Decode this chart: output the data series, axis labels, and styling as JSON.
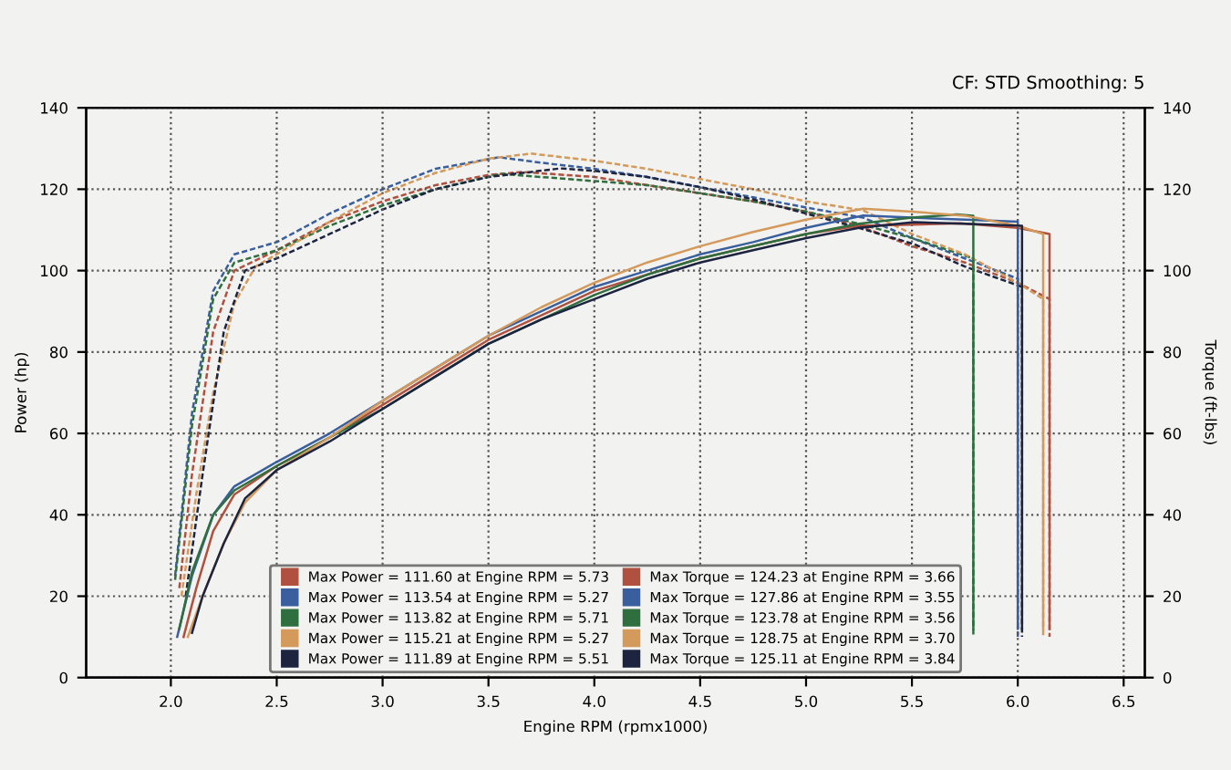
{
  "chart_data": {
    "type": "line",
    "xlabel": "Engine RPM (rpmx1000)",
    "ylabel": "Power (hp)",
    "y2label": "Torque (ft-lbs)",
    "annotations": [
      "CF: STD Smoothing: 5"
    ],
    "xlim": [
      1.6,
      6.6
    ],
    "xticks": [
      {
        "value": 2,
        "label": "2.0"
      },
      {
        "value": 2.5,
        "label": "2.5"
      },
      {
        "value": 3,
        "label": "3.0"
      },
      {
        "value": 3.5,
        "label": "3.5"
      },
      {
        "value": 4,
        "label": "4.0"
      },
      {
        "value": 4.5,
        "label": "4.5"
      },
      {
        "value": 5,
        "label": "5.0"
      },
      {
        "value": 5.5,
        "label": "5.5"
      },
      {
        "value": 6,
        "label": "6.0"
      },
      {
        "value": 6.5,
        "label": "6.5"
      }
    ],
    "ylim": [
      0,
      140
    ],
    "yticks": [
      0,
      20,
      40,
      60,
      80,
      100,
      120,
      140
    ],
    "y2lim": [
      0,
      140
    ],
    "y2ticks": [
      0,
      20,
      40,
      60,
      80,
      100,
      120,
      140
    ],
    "grid": true,
    "legend": "bottom",
    "marker": "none",
    "series": [
      {
        "name": "Max Power = 111.60 at Engine RPM = 5.73",
        "color": "#b0503f",
        "line_style": "solid",
        "x": [
          2.06,
          2.12,
          2.2,
          2.3,
          2.5,
          2.75,
          3.0,
          3.25,
          3.5,
          3.75,
          4.0,
          4.25,
          4.5,
          4.75,
          5.0,
          5.25,
          5.5,
          5.73,
          6.0,
          6.15,
          6.15
        ],
        "values": [
          10,
          22,
          36,
          45,
          52,
          59,
          67,
          75,
          83,
          89,
          95,
          99,
          103,
          106,
          109,
          111,
          111.3,
          111.6,
          110.5,
          109,
          12
        ]
      },
      {
        "name": "Max Power = 113.54 at Engine RPM = 5.27",
        "color": "#3a5f9e",
        "line_style": "solid",
        "x": [
          2.03,
          2.1,
          2.2,
          2.3,
          2.5,
          2.75,
          3.0,
          3.25,
          3.5,
          3.75,
          4.0,
          4.25,
          4.5,
          4.75,
          5.0,
          5.27,
          5.5,
          5.75,
          6.0,
          6.0
        ],
        "values": [
          10,
          25,
          40,
          47,
          53,
          60,
          68,
          76,
          84,
          90,
          96,
          100,
          104,
          107,
          110.5,
          113.54,
          113,
          112.5,
          112,
          12
        ]
      },
      {
        "name": "Max Power = 113.82 at Engine RPM = 5.71",
        "color": "#2f6e3e",
        "line_style": "solid",
        "x": [
          2.04,
          2.1,
          2.2,
          2.3,
          2.5,
          2.75,
          3.0,
          3.25,
          3.5,
          3.75,
          4.0,
          4.25,
          4.5,
          4.75,
          5.0,
          5.25,
          5.5,
          5.71,
          5.79,
          5.79
        ],
        "values": [
          12,
          26,
          40,
          46,
          52,
          59,
          66,
          74,
          82,
          88,
          94,
          99,
          103,
          106,
          109,
          111.5,
          113,
          113.82,
          113.5,
          12
        ]
      },
      {
        "name": "Max Power = 115.21 at Engine RPM = 5.27",
        "color": "#d49a5c",
        "line_style": "solid",
        "x": [
          2.08,
          2.15,
          2.25,
          2.35,
          2.5,
          2.75,
          3.0,
          3.25,
          3.5,
          3.75,
          4.0,
          4.25,
          4.5,
          4.75,
          5.0,
          5.27,
          5.5,
          5.75,
          6.0,
          6.12,
          6.12
        ],
        "values": [
          10,
          20,
          33,
          43,
          51,
          59,
          68,
          76,
          84,
          91,
          97,
          102,
          106,
          109.5,
          112.5,
          115.21,
          114.5,
          113.5,
          111,
          109,
          12
        ]
      },
      {
        "name": "Max Power = 111.89 at Engine RPM = 5.51",
        "color": "#1c2440",
        "line_style": "solid",
        "x": [
          2.1,
          2.15,
          2.25,
          2.35,
          2.5,
          2.75,
          3.0,
          3.25,
          3.5,
          3.75,
          4.0,
          4.25,
          4.5,
          4.75,
          5.0,
          5.25,
          5.51,
          5.75,
          6.02,
          6.02
        ],
        "values": [
          11,
          20,
          33,
          44,
          51,
          58,
          66,
          74,
          82,
          88,
          93,
          98,
          102,
          105,
          108,
          110.5,
          111.89,
          111.5,
          111,
          12
        ]
      },
      {
        "name": "Max Torque = 124.23 at Engine RPM = 3.66",
        "color": "#b0503f",
        "line_style": "dashed",
        "axis": "y2",
        "x": [
          2.04,
          2.1,
          2.2,
          2.3,
          2.5,
          2.75,
          3.0,
          3.25,
          3.5,
          3.66,
          4.0,
          4.25,
          4.5,
          4.75,
          5.0,
          5.25,
          5.5,
          5.75,
          6.0,
          6.15,
          6.15
        ],
        "values": [
          22,
          50,
          85,
          100,
          105,
          112,
          117,
          121,
          123.5,
          124.23,
          123,
          121,
          119,
          117,
          114.5,
          111,
          106,
          102,
          97,
          93,
          10
        ]
      },
      {
        "name": "Max Torque = 127.86 at Engine RPM = 3.55",
        "color": "#3a5f9e",
        "line_style": "dashed",
        "axis": "y2",
        "x": [
          2.02,
          2.1,
          2.2,
          2.3,
          2.5,
          2.75,
          3.0,
          3.25,
          3.55,
          3.75,
          4.0,
          4.25,
          4.5,
          4.75,
          5.0,
          5.27,
          5.5,
          5.75,
          6.0,
          6.0
        ],
        "values": [
          25,
          65,
          95,
          104,
          107,
          114,
          120,
          125,
          127.86,
          126.5,
          125,
          123,
          120.5,
          118,
          115.5,
          113,
          108,
          103,
          98,
          10
        ]
      },
      {
        "name": "Max Torque = 123.78 at Engine RPM = 3.56",
        "color": "#2f6e3e",
        "line_style": "dashed",
        "axis": "y2",
        "x": [
          2.02,
          2.1,
          2.2,
          2.3,
          2.5,
          2.75,
          3.0,
          3.25,
          3.56,
          3.75,
          4.0,
          4.25,
          4.5,
          4.75,
          5.0,
          5.25,
          5.5,
          5.79,
          5.79
        ],
        "values": [
          24,
          62,
          93,
          102,
          105,
          111,
          116,
          120,
          123.78,
          123,
          122,
          121,
          119,
          117,
          114.5,
          111.5,
          108,
          103,
          10
        ]
      },
      {
        "name": "Max Torque = 128.75 at Engine RPM = 3.70",
        "color": "#d49a5c",
        "line_style": "dashed",
        "axis": "y2",
        "x": [
          2.05,
          2.12,
          2.2,
          2.3,
          2.4,
          2.5,
          2.75,
          3.0,
          3.25,
          3.5,
          3.7,
          4.0,
          4.25,
          4.5,
          4.75,
          5.0,
          5.27,
          5.5,
          5.75,
          6.0,
          6.12,
          6.12
        ],
        "values": [
          20,
          45,
          70,
          92,
          101,
          104,
          112,
          119,
          124,
          127.5,
          128.75,
          127,
          125,
          122.5,
          120,
          117,
          114.8,
          109,
          104,
          97,
          93,
          10
        ]
      },
      {
        "name": "Max Torque = 125.11 at Engine RPM = 3.84",
        "color": "#1c2440",
        "line_style": "dashed",
        "axis": "y2",
        "x": [
          2.07,
          2.15,
          2.25,
          2.35,
          2.5,
          2.75,
          3.0,
          3.25,
          3.5,
          3.84,
          4.0,
          4.25,
          4.5,
          4.75,
          5.0,
          5.25,
          5.51,
          5.75,
          6.02,
          6.02
        ],
        "values": [
          20,
          50,
          85,
          100,
          103,
          109,
          115,
          120,
          123,
          125.11,
          124.5,
          123,
          120.5,
          117.5,
          114,
          110.5,
          106.5,
          101,
          96,
          10
        ]
      }
    ]
  }
}
